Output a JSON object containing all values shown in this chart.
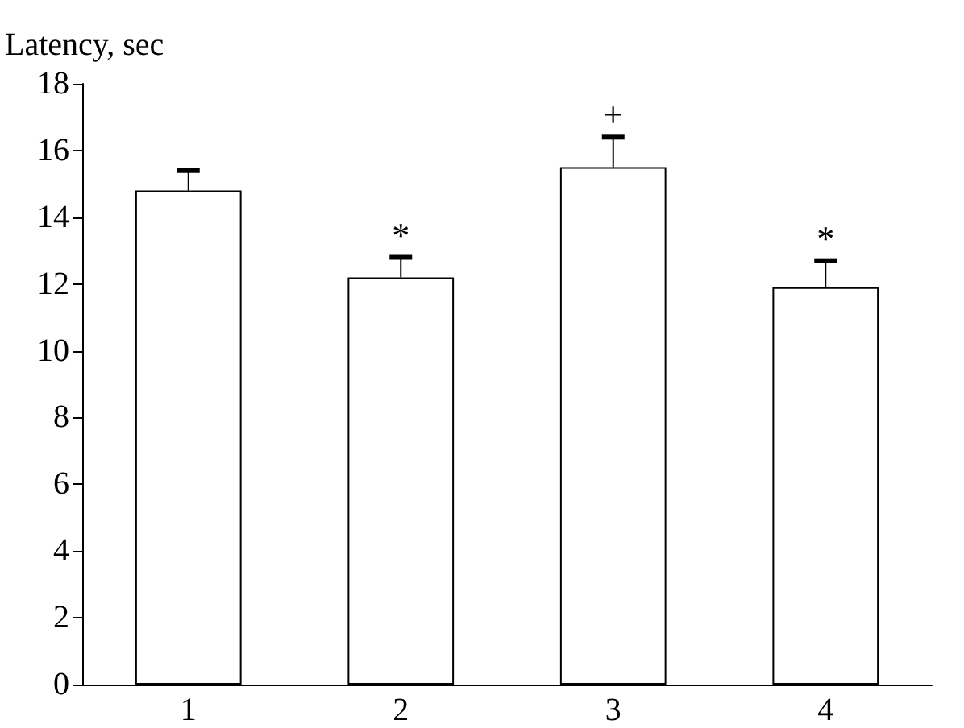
{
  "chart_data": {
    "type": "bar",
    "ylabel": "Latency, sec",
    "categories": [
      "1",
      "2",
      "3",
      "4"
    ],
    "values": [
      14.8,
      12.2,
      15.5,
      11.9
    ],
    "errors": [
      [
        14.8,
        15.4
      ],
      [
        12.2,
        12.8
      ],
      [
        15.5,
        16.4
      ],
      [
        11.9,
        12.7
      ]
    ],
    "color": "#ffffff",
    "ylim": [
      0,
      18
    ],
    "yticks": [
      0,
      2,
      4,
      6,
      8,
      10,
      12,
      14,
      16,
      18
    ],
    "annotations": [
      {
        "text": "*",
        "x": "2",
        "y": 12.8
      },
      {
        "text": "+",
        "x": "3",
        "y": 16.4
      },
      {
        "text": "*",
        "x": "4",
        "y": 12.7
      }
    ],
    "grid": false
  }
}
